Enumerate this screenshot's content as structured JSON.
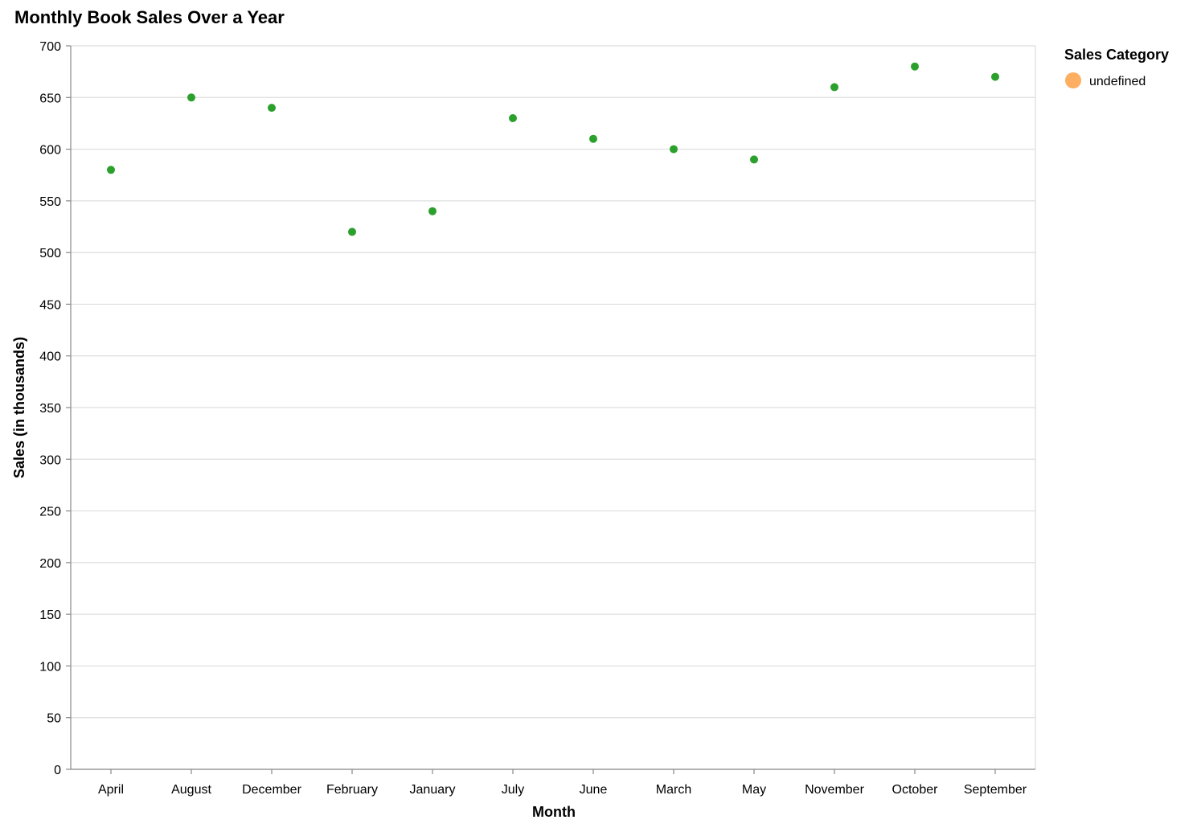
{
  "chart_data": {
    "type": "scatter",
    "title": "Monthly Book Sales Over a Year",
    "xlabel": "Month",
    "ylabel": "Sales (in thousands)",
    "categories": [
      "April",
      "August",
      "December",
      "February",
      "January",
      "July",
      "June",
      "March",
      "May",
      "November",
      "October",
      "September"
    ],
    "series": [
      {
        "values": [
          580,
          650,
          640,
          520,
          540,
          630,
          610,
          600,
          590,
          660,
          680,
          670
        ]
      }
    ],
    "ylim": [
      0,
      700
    ],
    "y_ticks": [
      0,
      50,
      100,
      150,
      200,
      250,
      300,
      350,
      400,
      450,
      500,
      550,
      600,
      650,
      700
    ],
    "grid": true,
    "point_color": "#2ca02c",
    "legend": {
      "title": "Sales Category",
      "position": "top-right",
      "items": [
        {
          "label": "undefined",
          "color": "#fdae61"
        }
      ]
    }
  }
}
